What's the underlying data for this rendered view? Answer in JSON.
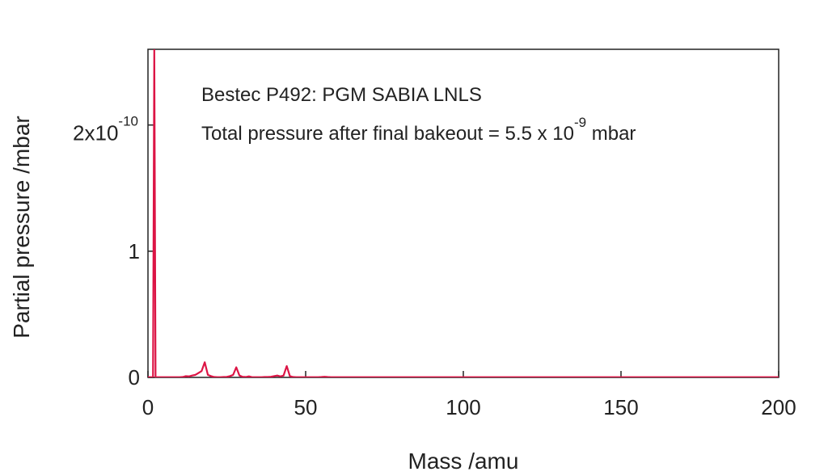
{
  "chart_data": {
    "type": "line",
    "xlabel": "Mass /amu",
    "ylabel": "Partial pressure /mbar",
    "annotations": [
      {
        "text": "Bestec P492: PGM SABIA LNLS"
      },
      {
        "text": "Total pressure after final bakeout = 5.5 x 10",
        "superscript": "-9",
        "suffix": " mbar"
      }
    ],
    "xlim": [
      0,
      200
    ],
    "xticks": [
      0,
      50,
      100,
      150,
      200
    ],
    "ylim": [
      0,
      2.6
    ],
    "yticks": [
      0,
      1,
      {
        "value": 2,
        "label": "2x10",
        "superscript": "-10"
      }
    ],
    "x": [
      0,
      1,
      1.6,
      2,
      2.4,
      3,
      4,
      5,
      6,
      7,
      8,
      9,
      10,
      11,
      12,
      13,
      14,
      15,
      16,
      17,
      18,
      19,
      20,
      21,
      22,
      23,
      24,
      25,
      26,
      27,
      28,
      29,
      30,
      31,
      32,
      33,
      34,
      35,
      36,
      37,
      38,
      39,
      40,
      41,
      42,
      43,
      44,
      45,
      46,
      47,
      48,
      49,
      50,
      51,
      52,
      53,
      54,
      55,
      56,
      57,
      58,
      59,
      60,
      70,
      80,
      90,
      100,
      110,
      120,
      130,
      140,
      150,
      160,
      170,
      180,
      190,
      200
    ],
    "series": [
      {
        "color": "#dc1445",
        "values": [
          0.002,
          0.002,
          0,
          2.6,
          0,
          0.002,
          0.002,
          0.002,
          0.002,
          0.002,
          0.002,
          0.002,
          0.002,
          0.003,
          0.01,
          0.008,
          0.015,
          0.02,
          0.035,
          0.05,
          0.12,
          0.02,
          0.01,
          0.003,
          0.002,
          0.002,
          0.003,
          0.004,
          0.01,
          0.02,
          0.08,
          0.015,
          0.005,
          0.003,
          0.008,
          0.002,
          0.002,
          0.002,
          0.002,
          0.003,
          0.003,
          0.005,
          0.01,
          0.015,
          0.008,
          0.015,
          0.09,
          0.01,
          0.003,
          0.002,
          0.002,
          0.002,
          0.002,
          0.002,
          0.002,
          0.002,
          0.002,
          0.003,
          0.005,
          0.003,
          0.002,
          0.002,
          0.002,
          0.002,
          0.002,
          0.002,
          0.002,
          0.002,
          0.002,
          0.002,
          0.002,
          0.002,
          0.002,
          0.002,
          0.002,
          0.002,
          0.002
        ]
      }
    ]
  }
}
